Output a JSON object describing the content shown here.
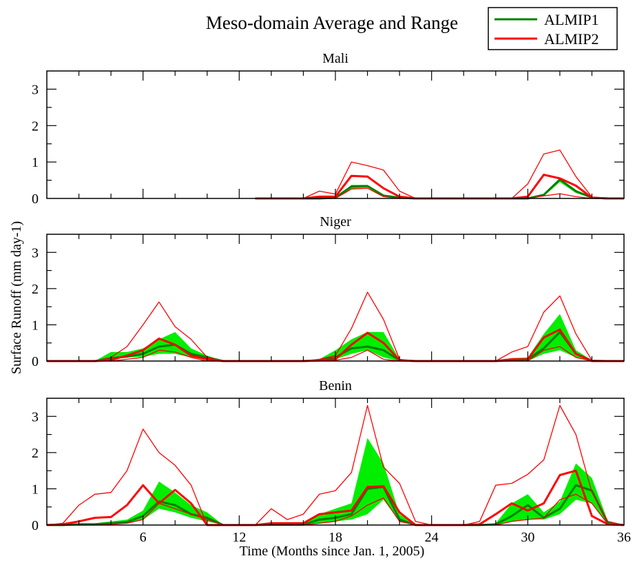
{
  "title": "Meso-domain Average and Range",
  "ylabel": "Surface Runoff (mm day-1)",
  "xlabel": "Time (Months since Jan. 1, 2005)",
  "legend": [
    {
      "label": "ALMIP1",
      "color": "#008000"
    },
    {
      "label": "ALMIP2",
      "color": "#ff0000"
    }
  ],
  "colors": {
    "range_fill": "#00ee00",
    "almip1": "#008000",
    "almip2": "#ff0000"
  },
  "chart_data": [
    {
      "type": "line",
      "subplot": "Mali",
      "xlim": [
        0,
        36
      ],
      "ylim": [
        0,
        3.5
      ],
      "x_ticks": [
        6,
        12,
        18,
        24,
        30,
        36
      ],
      "y_ticks": [
        0,
        1,
        2,
        3
      ],
      "x": [
        0,
        1,
        2,
        3,
        4,
        5,
        6,
        7,
        8,
        9,
        10,
        11,
        12,
        13,
        14,
        15,
        16,
        17,
        18,
        19,
        20,
        21,
        22,
        23,
        24,
        25,
        26,
        27,
        28,
        29,
        30,
        31,
        32,
        33,
        34,
        35,
        36
      ],
      "series": [
        {
          "name": "ALMIP1",
          "role": "range_max",
          "values": [
            null,
            null,
            null,
            null,
            null,
            null,
            null,
            null,
            null,
            null,
            null,
            null,
            null,
            0,
            0,
            0,
            0,
            0,
            0.02,
            0.37,
            0.37,
            0.1,
            0.02,
            0,
            0,
            0,
            0,
            0,
            0,
            0,
            0,
            0.1,
            0.5,
            0.2,
            0.02,
            0,
            0
          ]
        },
        {
          "name": "ALMIP1",
          "role": "range_min",
          "values": [
            null,
            null,
            null,
            null,
            null,
            null,
            null,
            null,
            null,
            null,
            null,
            null,
            null,
            0,
            0,
            0,
            0,
            0,
            0.01,
            0.27,
            0.3,
            0.06,
            0.01,
            0,
            0,
            0,
            0,
            0,
            0,
            0,
            0,
            0.06,
            0.45,
            0.15,
            0.01,
            0,
            0
          ]
        },
        {
          "name": "ALMIP1",
          "role": "mean",
          "values": [
            null,
            null,
            null,
            null,
            null,
            null,
            null,
            null,
            null,
            null,
            null,
            null,
            null,
            0,
            0,
            0,
            0,
            0,
            0.02,
            0.33,
            0.34,
            0.08,
            0.02,
            0,
            0,
            0,
            0,
            0,
            0,
            0,
            0,
            0.1,
            0.52,
            0.2,
            0.02,
            0,
            0
          ]
        },
        {
          "name": "ALMIP2",
          "role": "range_max",
          "values": [
            null,
            null,
            null,
            null,
            null,
            null,
            null,
            null,
            null,
            null,
            null,
            null,
            null,
            0,
            0,
            0,
            0,
            0.2,
            0.12,
            1.0,
            0.9,
            0.78,
            0.2,
            0,
            0,
            0,
            0,
            0,
            0,
            0,
            0.4,
            1.22,
            1.33,
            0.6,
            0.04,
            0,
            0
          ]
        },
        {
          "name": "ALMIP2",
          "role": "range_min",
          "values": [
            null,
            null,
            null,
            null,
            null,
            null,
            null,
            null,
            null,
            null,
            null,
            null,
            null,
            0,
            0,
            0,
            0,
            0,
            0,
            0.26,
            0.28,
            0.05,
            0,
            0,
            0,
            0,
            0,
            0,
            0,
            0,
            0,
            0.07,
            0.13,
            0.05,
            0,
            0,
            0
          ]
        },
        {
          "name": "ALMIP2",
          "role": "mean",
          "values": [
            null,
            null,
            null,
            null,
            null,
            null,
            null,
            null,
            null,
            null,
            null,
            null,
            null,
            0,
            0,
            0,
            0,
            0.05,
            0.05,
            0.62,
            0.6,
            0.28,
            0.05,
            0,
            0,
            0,
            0,
            0,
            0,
            0,
            0.05,
            0.65,
            0.55,
            0.35,
            0.02,
            0,
            0
          ]
        }
      ]
    },
    {
      "type": "line",
      "subplot": "Niger",
      "xlim": [
        0,
        36
      ],
      "ylim": [
        0,
        3.5
      ],
      "x_ticks": [
        6,
        12,
        18,
        24,
        30,
        36
      ],
      "y_ticks": [
        0,
        1,
        2,
        3
      ],
      "x": [
        0,
        1,
        2,
        3,
        4,
        5,
        6,
        7,
        8,
        9,
        10,
        11,
        12,
        13,
        14,
        15,
        16,
        17,
        18,
        19,
        20,
        21,
        22,
        23,
        24,
        25,
        26,
        27,
        28,
        29,
        30,
        31,
        32,
        33,
        34,
        35,
        36
      ],
      "series": [
        {
          "name": "ALMIP1",
          "role": "range_max",
          "values": [
            0,
            0,
            0,
            0,
            0.25,
            0.25,
            0.35,
            0.6,
            0.8,
            0.35,
            0.15,
            0,
            0,
            0,
            0,
            0,
            0,
            0.05,
            0.3,
            0.6,
            0.8,
            0.8,
            0.05,
            0,
            0,
            0,
            0,
            0,
            0,
            0.08,
            0.1,
            0.75,
            1.3,
            0.3,
            0.02,
            0,
            0
          ]
        },
        {
          "name": "ALMIP1",
          "role": "range_min",
          "values": [
            0,
            0,
            0,
            0,
            0.05,
            0.1,
            0.12,
            0.2,
            0.2,
            0.1,
            0.05,
            0,
            0,
            0,
            0,
            0,
            0,
            0,
            0.05,
            0.2,
            0.3,
            0.1,
            0,
            0,
            0,
            0,
            0,
            0,
            0,
            0,
            0,
            0.2,
            0.3,
            0.1,
            0,
            0,
            0
          ]
        },
        {
          "name": "ALMIP1",
          "role": "mean",
          "values": [
            0,
            0,
            0,
            0,
            0.08,
            0.12,
            0.2,
            0.4,
            0.45,
            0.2,
            0.1,
            0,
            0,
            0,
            0,
            0,
            0,
            0.02,
            0.1,
            0.35,
            0.4,
            0.3,
            0.02,
            0,
            0,
            0,
            0,
            0,
            0,
            0.02,
            0.05,
            0.35,
            0.8,
            0.2,
            0.01,
            0,
            0
          ]
        },
        {
          "name": "ALMIP2",
          "role": "range_max",
          "values": [
            0,
            0,
            0,
            0,
            0.1,
            0.4,
            1.0,
            1.63,
            0.95,
            0.6,
            0.1,
            0,
            0,
            0,
            0,
            0,
            0,
            0.05,
            0.15,
            0.9,
            1.9,
            1.15,
            0.05,
            0,
            0,
            0,
            0,
            0,
            0,
            0.25,
            0.4,
            1.35,
            1.8,
            0.75,
            0.02,
            0,
            0
          ]
        },
        {
          "name": "ALMIP2",
          "role": "range_min",
          "values": [
            0,
            0,
            0,
            0,
            0,
            0.05,
            0.1,
            0.3,
            0.25,
            0.1,
            0,
            0,
            0,
            0,
            0,
            0,
            0,
            0,
            0.02,
            0.1,
            0.3,
            0.05,
            0,
            0,
            0,
            0,
            0,
            0,
            0,
            0,
            0,
            0.3,
            0.4,
            0.1,
            0,
            0,
            0
          ]
        },
        {
          "name": "ALMIP2",
          "role": "mean",
          "values": [
            0,
            0,
            0,
            0,
            0.03,
            0.15,
            0.3,
            0.62,
            0.45,
            0.15,
            0.05,
            0,
            0,
            0,
            0,
            0,
            0,
            0.02,
            0.05,
            0.45,
            0.78,
            0.5,
            0.02,
            0,
            0,
            0,
            0,
            0,
            0,
            0.05,
            0.05,
            0.65,
            0.87,
            0.2,
            0,
            0,
            0
          ]
        }
      ]
    },
    {
      "type": "line",
      "subplot": "Benin",
      "xlim": [
        0,
        36
      ],
      "ylim": [
        0,
        3.5
      ],
      "x_ticks": [
        6,
        12,
        18,
        24,
        30,
        36
      ],
      "y_ticks": [
        0,
        1,
        2,
        3
      ],
      "x": [
        0,
        1,
        2,
        3,
        4,
        5,
        6,
        7,
        8,
        9,
        10,
        11,
        12,
        13,
        14,
        15,
        16,
        17,
        18,
        19,
        20,
        21,
        22,
        23,
        24,
        25,
        26,
        27,
        28,
        29,
        30,
        31,
        32,
        33,
        34,
        35,
        36
      ],
      "series": [
        {
          "name": "ALMIP1",
          "role": "range_max",
          "values": [
            0,
            0,
            0.05,
            0.05,
            0.1,
            0.15,
            0.4,
            1.2,
            0.9,
            0.55,
            0.35,
            0,
            0,
            0,
            0.02,
            0.02,
            0.02,
            0.3,
            0.45,
            0.6,
            2.4,
            1.7,
            0.3,
            0,
            0,
            0,
            0,
            0,
            0.05,
            0.6,
            0.85,
            0.35,
            0.65,
            1.7,
            1.3,
            0.1,
            0
          ]
        },
        {
          "name": "ALMIP1",
          "role": "range_min",
          "values": [
            0,
            0,
            0,
            0,
            0.02,
            0.05,
            0.15,
            0.45,
            0.35,
            0.2,
            0.1,
            0,
            0,
            0,
            0,
            0,
            0,
            0.05,
            0.1,
            0.15,
            0.3,
            0.7,
            0.1,
            0,
            0,
            0,
            0,
            0,
            0,
            0.1,
            0.15,
            0.15,
            0.3,
            0.7,
            0.6,
            0.02,
            0
          ]
        },
        {
          "name": "ALMIP1",
          "role": "mean",
          "values": [
            0,
            0,
            0.02,
            0.02,
            0.05,
            0.08,
            0.25,
            0.65,
            0.55,
            0.3,
            0.2,
            0,
            0,
            0,
            0.01,
            0.01,
            0.01,
            0.15,
            0.2,
            0.3,
            1.0,
            1.05,
            0.15,
            0,
            0,
            0,
            0,
            0,
            0.02,
            0.25,
            0.55,
            0.2,
            0.45,
            1.1,
            0.95,
            0.05,
            0
          ]
        },
        {
          "name": "ALMIP2",
          "role": "range_max",
          "values": [
            0,
            0.05,
            0.55,
            0.85,
            0.9,
            1.5,
            2.65,
            2.0,
            1.65,
            1.1,
            0,
            0,
            0,
            0,
            0.45,
            0.15,
            0.3,
            0.85,
            0.95,
            1.45,
            3.3,
            1.6,
            1.15,
            0.1,
            0,
            0,
            0,
            0.1,
            1.1,
            1.15,
            1.4,
            1.8,
            3.3,
            2.5,
            0.9,
            0.1,
            0
          ]
        },
        {
          "name": "ALMIP2",
          "role": "range_min",
          "values": [
            0,
            0,
            0,
            0,
            0.02,
            0.05,
            0.15,
            0.6,
            0.45,
            0.3,
            0.15,
            0,
            0,
            0,
            0,
            0,
            0,
            0.05,
            0.1,
            0.25,
            0.55,
            0.75,
            0.1,
            0,
            0,
            0,
            0,
            0,
            0,
            0.1,
            0.15,
            0.2,
            0.7,
            0.85,
            0.6,
            0.02,
            0
          ]
        },
        {
          "name": "ALMIP2",
          "role": "mean",
          "values": [
            0,
            0.02,
            0.1,
            0.2,
            0.22,
            0.55,
            1.1,
            0.6,
            0.97,
            0.6,
            0,
            0,
            0,
            0,
            0.05,
            0.05,
            0.05,
            0.3,
            0.35,
            0.4,
            1.05,
            1.07,
            0.35,
            0,
            0,
            0,
            0,
            0.02,
            0.3,
            0.6,
            0.4,
            0.6,
            1.38,
            1.5,
            0.25,
            0.02,
            0
          ]
        }
      ]
    }
  ]
}
